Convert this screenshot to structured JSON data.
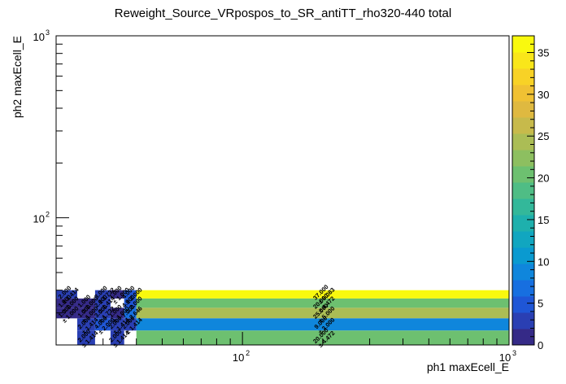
{
  "chart_data": {
    "type": "heatmap",
    "title": "Reweight_Source_VRpospos_to_SR_antiTT_rho320-440 total",
    "xlabel": "ph1 maxEcell_E",
    "ylabel": "ph2 maxEcell_E",
    "xscale": "log",
    "yscale": "log",
    "xlim": [
      20,
      1000
    ],
    "ylim": [
      20,
      1000
    ],
    "x_ticks": [
      {
        "base": "10",
        "exp": "2",
        "value": 100
      },
      {
        "base": "10",
        "exp": "3",
        "value": 1000
      }
    ],
    "y_ticks": [
      {
        "base": "10",
        "exp": "2",
        "value": 100
      },
      {
        "base": "10",
        "exp": "3",
        "value": 1000
      }
    ],
    "colorbar": {
      "min": 0,
      "max": 37,
      "ticks": [
        "0",
        "5",
        "10",
        "15",
        "20",
        "25",
        "30",
        "35"
      ],
      "palette": [
        "#352a87",
        "#2a3fb3",
        "#1f56d6",
        "#176fe0",
        "#0f86dc",
        "#0a9ad0",
        "#11a6c0",
        "#1eb0ad",
        "#33b89a",
        "#4fbd85",
        "#6dc070",
        "#8dbf60",
        "#abbd55",
        "#c7ba4b",
        "#dfb940",
        "#f0c133",
        "#f8d226",
        "#f9e61a",
        "#f9f90e"
      ]
    },
    "x_edges": [
      20,
      24,
      28,
      32,
      36,
      40,
      1000
    ],
    "y_edges": [
      20,
      24,
      28,
      32,
      36,
      40,
      1000
    ],
    "cells": [
      {
        "ix": 1,
        "iy": 5,
        "value": 2,
        "label": "2.000",
        "err": "± 1.414"
      },
      {
        "ix": 3,
        "iy": 5,
        "value": 3,
        "label": "3.000",
        "err": "± 1.732"
      },
      {
        "ix": 4,
        "iy": 5,
        "value": 1,
        "label": "1.000",
        "err": "± 1.000"
      },
      {
        "ix": 5,
        "iy": 5,
        "value": 4,
        "label": "4.000",
        "err": "± 2.000"
      },
      {
        "ix": 6,
        "iy": 5,
        "value": 37,
        "label": "37.000",
        "err": "± 6.083"
      },
      {
        "ix": 1,
        "iy": 4,
        "value": 1,
        "label": "1.000",
        "err": "± 1.000"
      },
      {
        "ix": 2,
        "iy": 4,
        "value": 1,
        "label": "1.000",
        "err": "± 1.000"
      },
      {
        "ix": 3,
        "iy": 4,
        "value": 2,
        "label": "2.000",
        "err": "± 1.414"
      },
      {
        "ix": 5,
        "iy": 4,
        "value": 4,
        "label": "4.000",
        "err": "± 2.000"
      },
      {
        "ix": 6,
        "iy": 4,
        "value": 20,
        "label": "20.000",
        "err": "± 4.472"
      },
      {
        "ix": 1,
        "iy": 3,
        "value": 1,
        "label": "1.000",
        "err": "± 1.000"
      },
      {
        "ix": 2,
        "iy": 3,
        "value": 1,
        "label": "1.000",
        "err": "± 1.000"
      },
      {
        "ix": 3,
        "iy": 3,
        "value": 3,
        "label": "3.000",
        "err": "± 1.732"
      },
      {
        "ix": 4,
        "iy": 3,
        "value": 1,
        "label": "1.000",
        "err": "± 1.000"
      },
      {
        "ix": 5,
        "iy": 3,
        "value": 7,
        "label": "7.000",
        "err": "± 2.646"
      },
      {
        "ix": 6,
        "iy": 3,
        "value": 25,
        "label": "25.000",
        "err": "± 5.000"
      },
      {
        "ix": 2,
        "iy": 2,
        "value": 2,
        "label": "2.000",
        "err": "± 1.414"
      },
      {
        "ix": 3,
        "iy": 2,
        "value": 4,
        "label": "4.000",
        "err": "± 2.000"
      },
      {
        "ix": 4,
        "iy": 2,
        "value": 2,
        "label": "2.000",
        "err": "± 1.414"
      },
      {
        "ix": 5,
        "iy": 2,
        "value": 2,
        "label": "2.000",
        "err": "± 1.414"
      },
      {
        "ix": 6,
        "iy": 2,
        "value": 9,
        "label": "9.000",
        "err": "± 3.000"
      },
      {
        "ix": 2,
        "iy": 1,
        "value": 2,
        "label": "2.000",
        "err": "± 1.414"
      },
      {
        "ix": 4,
        "iy": 1,
        "value": 2,
        "label": "2.000",
        "err": "± 1.414"
      },
      {
        "ix": 6,
        "iy": 1,
        "value": 20,
        "label": "20.000",
        "err": "± 4.472"
      }
    ]
  }
}
